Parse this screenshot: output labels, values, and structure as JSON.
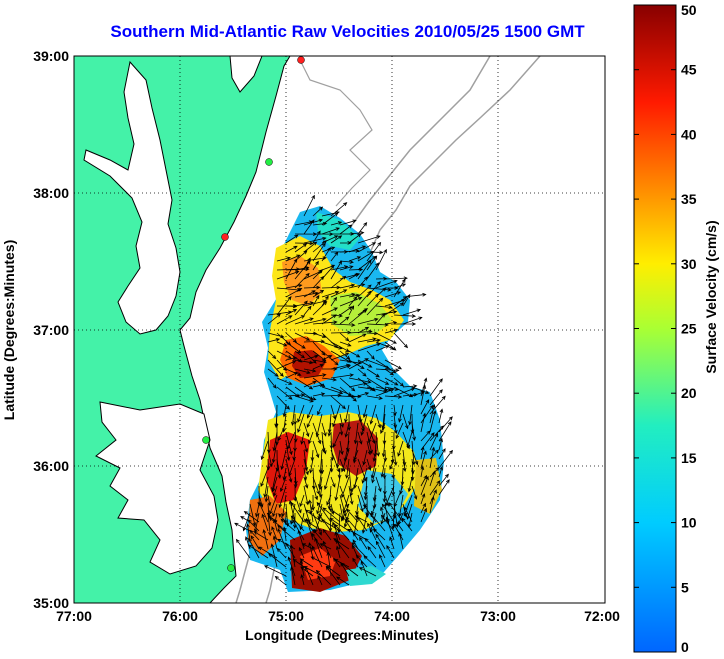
{
  "title": "Southern Mid-Atlantic Raw Velocities 2010/05/25 1500 GMT",
  "xlabel": "Longitude (Degrees:Minutes)",
  "ylabel": "Latitude (Degrees:Minutes)",
  "x_ticks": [
    "77:00",
    "76:00",
    "75:00",
    "74:00",
    "73:00",
    "72:00"
  ],
  "y_ticks": [
    "39:00",
    "38:00",
    "37:00",
    "36:00",
    "35:00"
  ],
  "colorbar": {
    "label": "Surface Velocity (cm/s)",
    "ticks": [
      "0",
      "5",
      "10",
      "15",
      "20",
      "25",
      "30",
      "35",
      "40",
      "45",
      "50"
    ]
  },
  "colors": {
    "land": "#44f2a8",
    "coastline": "#000000",
    "bathymetry": "#a0a0a0",
    "title": "#0000ff"
  }
}
